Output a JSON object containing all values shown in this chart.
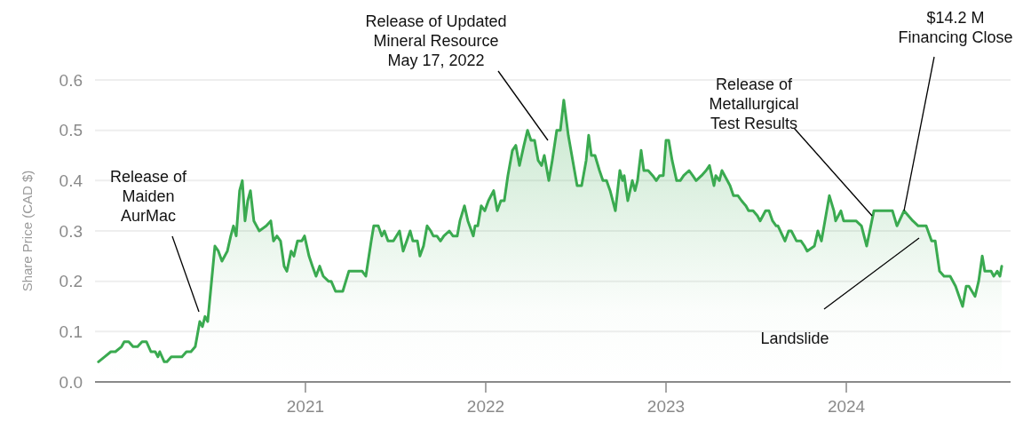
{
  "chart_data": {
    "type": "area",
    "ylabel": "Share Price (CAD $)",
    "xlim": [
      2019.833,
      2024.911
    ],
    "xticks": [
      2021,
      2022,
      2023,
      2024
    ],
    "ylim": [
      0,
      0.6
    ],
    "yticks": [
      {
        "value": 0,
        "label": "0.0"
      },
      0.1,
      0.2,
      0.3,
      0.4,
      0.5,
      0.6
    ],
    "grid": "y",
    "marker": "none",
    "line_style": "solid",
    "series": [
      {
        "color": "#3aaa50",
        "x": [
          2019.852,
          2019.887,
          2019.921,
          2019.946,
          2019.98,
          2019.995,
          2020.02,
          2020.044,
          2020.069,
          2020.094,
          2020.118,
          2020.143,
          2020.167,
          2020.182,
          2020.192,
          2020.217,
          2020.232,
          2020.256,
          2020.315,
          2020.34,
          2020.365,
          2020.389,
          2020.399,
          2020.414,
          2020.429,
          2020.443,
          2020.458,
          2020.498,
          2020.517,
          2020.537,
          2020.567,
          2020.586,
          2020.601,
          2020.616,
          2020.635,
          2020.65,
          2020.665,
          2020.68,
          2020.695,
          2020.714,
          2020.744,
          2020.783,
          2020.808,
          2020.823,
          2020.842,
          2020.862,
          2020.882,
          2020.897,
          2020.921,
          2020.936,
          2020.956,
          2020.98,
          2020.995,
          2021.02,
          2021.039,
          2021.059,
          2021.079,
          2021.099,
          2021.128,
          2021.143,
          2021.167,
          2021.207,
          2021.241,
          2021.315,
          2021.335,
          2021.365,
          2021.379,
          2021.404,
          2021.424,
          2021.438,
          2021.458,
          2021.488,
          2021.522,
          2021.542,
          2021.562,
          2021.581,
          2021.596,
          2021.621,
          2021.635,
          2021.655,
          2021.675,
          2021.695,
          2021.709,
          2021.729,
          2021.749,
          2021.768,
          2021.798,
          2021.818,
          2021.842,
          2021.857,
          2021.882,
          2021.901,
          2021.931,
          2021.941,
          2021.956,
          2021.975,
          2021.995,
          2022.015,
          2022.044,
          2022.064,
          2022.084,
          2022.103,
          2022.123,
          2022.148,
          2022.167,
          2022.187,
          2022.212,
          2022.232,
          2022.251,
          2022.271,
          2022.291,
          2022.31,
          2022.325,
          2022.35,
          2022.369,
          2022.394,
          2022.414,
          2022.433,
          2022.458,
          2022.507,
          2022.532,
          2022.557,
          2022.571,
          2022.586,
          2022.606,
          2022.631,
          2022.65,
          2022.67,
          2022.69,
          2022.719,
          2022.744,
          2022.759,
          2022.768,
          2022.788,
          2022.813,
          2022.828,
          2022.842,
          2022.862,
          2022.877,
          2022.901,
          2022.926,
          2022.946,
          2022.965,
          2022.985,
          2023.0,
          2023.015,
          2023.034,
          2023.059,
          2023.079,
          2023.098,
          2023.128,
          2023.148,
          2023.167,
          2023.197,
          2023.222,
          2023.241,
          2023.266,
          2023.276,
          2023.296,
          2023.31,
          2023.34,
          2023.355,
          2023.374,
          2023.399,
          2023.419,
          2023.443,
          2023.458,
          2023.483,
          2023.507,
          2023.522,
          2023.552,
          2023.571,
          2023.591,
          2023.611,
          2023.621,
          2023.66,
          2023.68,
          2023.695,
          2023.724,
          2023.749,
          2023.768,
          2023.783,
          2023.823,
          2023.842,
          2023.862,
          2023.906,
          2023.931,
          2023.941,
          2023.97,
          2023.985,
          2024.025,
          2024.054,
          2024.084,
          2024.113,
          2024.153,
          2024.256,
          2024.281,
          2024.32,
          2024.369,
          2024.399,
          2024.443,
          2024.473,
          2024.493,
          2024.517,
          2024.542,
          2024.576,
          2024.606,
          2024.645,
          2024.665,
          2024.68,
          2024.714,
          2024.734,
          2024.754,
          2024.768,
          2024.803,
          2024.818,
          2024.837,
          2024.852,
          2024.862
        ],
        "values": [
          0.04,
          0.05,
          0.06,
          0.06,
          0.07,
          0.08,
          0.08,
          0.07,
          0.07,
          0.08,
          0.08,
          0.06,
          0.06,
          0.05,
          0.06,
          0.04,
          0.04,
          0.05,
          0.05,
          0.06,
          0.06,
          0.07,
          0.09,
          0.12,
          0.11,
          0.13,
          0.12,
          0.27,
          0.26,
          0.24,
          0.26,
          0.29,
          0.31,
          0.29,
          0.38,
          0.4,
          0.32,
          0.36,
          0.38,
          0.32,
          0.3,
          0.31,
          0.32,
          0.28,
          0.29,
          0.28,
          0.23,
          0.22,
          0.26,
          0.25,
          0.28,
          0.28,
          0.29,
          0.25,
          0.23,
          0.21,
          0.23,
          0.21,
          0.2,
          0.2,
          0.18,
          0.18,
          0.22,
          0.22,
          0.21,
          0.28,
          0.31,
          0.31,
          0.29,
          0.3,
          0.28,
          0.28,
          0.3,
          0.26,
          0.28,
          0.3,
          0.28,
          0.28,
          0.25,
          0.27,
          0.31,
          0.3,
          0.29,
          0.29,
          0.28,
          0.29,
          0.3,
          0.29,
          0.29,
          0.32,
          0.35,
          0.32,
          0.29,
          0.31,
          0.31,
          0.35,
          0.34,
          0.36,
          0.38,
          0.34,
          0.36,
          0.36,
          0.41,
          0.46,
          0.47,
          0.43,
          0.47,
          0.5,
          0.48,
          0.48,
          0.44,
          0.43,
          0.45,
          0.4,
          0.44,
          0.5,
          0.5,
          0.56,
          0.49,
          0.39,
          0.39,
          0.44,
          0.49,
          0.45,
          0.45,
          0.42,
          0.4,
          0.4,
          0.38,
          0.34,
          0.42,
          0.4,
          0.41,
          0.36,
          0.4,
          0.38,
          0.4,
          0.46,
          0.42,
          0.42,
          0.41,
          0.4,
          0.41,
          0.41,
          0.48,
          0.48,
          0.44,
          0.4,
          0.4,
          0.41,
          0.42,
          0.41,
          0.4,
          0.41,
          0.42,
          0.43,
          0.39,
          0.41,
          0.4,
          0.42,
          0.4,
          0.39,
          0.37,
          0.37,
          0.36,
          0.35,
          0.34,
          0.34,
          0.33,
          0.32,
          0.34,
          0.34,
          0.32,
          0.31,
          0.31,
          0.28,
          0.3,
          0.3,
          0.28,
          0.28,
          0.27,
          0.26,
          0.27,
          0.3,
          0.28,
          0.37,
          0.34,
          0.32,
          0.34,
          0.32,
          0.32,
          0.32,
          0.31,
          0.27,
          0.34,
          0.34,
          0.31,
          0.34,
          0.32,
          0.31,
          0.31,
          0.28,
          0.28,
          0.22,
          0.21,
          0.21,
          0.19,
          0.15,
          0.19,
          0.19,
          0.17,
          0.2,
          0.25,
          0.22,
          0.22,
          0.21,
          0.22,
          0.21,
          0.23
        ]
      }
    ],
    "annotations": [
      "Release of\nMaiden\nAurMac",
      "Release of Updated\nMineral Resource\nMay 17, 2022",
      {
        "text": "Release of\nMetallurgical\nTest Results",
        "x": 2024.143,
        "y": 0.33
      },
      {
        "text": "$14.2 M\nFinancing Close",
        "x": 2024.32,
        "y": 0.34
      },
      "Landslide"
    ]
  }
}
